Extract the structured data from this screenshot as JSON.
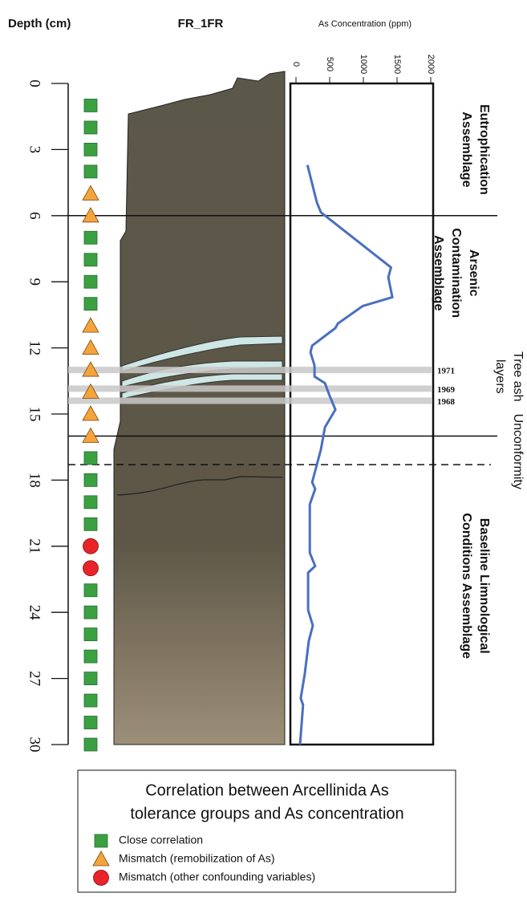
{
  "chart_data": {
    "type": "depth-profile",
    "title": "FR_1FR",
    "ylabel": "Depth (cm)",
    "xlabel": "As Concentration (ppm)",
    "ylim": [
      0,
      30
    ],
    "yticks": [
      0,
      3,
      6,
      9,
      12,
      15,
      18,
      21,
      24,
      27,
      30
    ],
    "xlim": [
      0,
      2000
    ],
    "xticks": [
      0,
      500,
      1000,
      1500,
      2000
    ],
    "series": [
      {
        "color": "#4a6fc0",
        "depths": [
          3.7,
          5.4,
          5.85,
          8.35,
          8.8,
          9.7,
          10.1,
          10.9,
          11.1,
          11.9,
          12.2,
          12.8,
          13.3,
          13.6,
          14.1,
          14.8,
          15.6,
          16.6,
          17.3,
          18.1,
          18.4,
          19.1,
          20.2,
          21.3,
          21.9,
          22.2,
          23.9,
          24.6,
          25.3,
          26.8,
          27.9,
          28.2,
          30
        ],
        "values": [
          170,
          310,
          370,
          1410,
          1370,
          1430,
          990,
          620,
          585,
          240,
          215,
          275,
          275,
          430,
          490,
          585,
          430,
          370,
          310,
          240,
          285,
          205,
          205,
          205,
          285,
          180,
          180,
          250,
          190,
          130,
          70,
          105,
          60
        ]
      }
    ],
    "boundaries": [
      {
        "depth": 6,
        "style": "solid"
      },
      {
        "depth": 16,
        "style": "solid"
      },
      {
        "depth": 17.3,
        "style": "dashed"
      }
    ],
    "ash_layers": [
      {
        "depth": 13,
        "label": "1971"
      },
      {
        "depth": 13.85,
        "label": "1969"
      },
      {
        "depth": 14.4,
        "label": "1968"
      }
    ],
    "zones": [
      {
        "lines": [
          "Eutrophication",
          "Assemblage"
        ],
        "depth": 3,
        "bold": true
      },
      {
        "lines": [
          "Arsenic",
          "Contamination",
          "Assemblage"
        ],
        "depth": 8.6,
        "bold": true
      },
      {
        "lines": [
          "Tree ash",
          "layers"
        ],
        "depth": 13.3,
        "bold": false
      },
      {
        "lines": [
          "Unconformity"
        ],
        "depth": 16.7,
        "bold": false
      },
      {
        "lines": [
          "Baseline Limnological",
          "Conditions Assemblage"
        ],
        "depth": 22.8,
        "bold": true
      }
    ],
    "legend": {
      "title": [
        "Correlation between Arcellinida As",
        "tolerance groups and As concentration"
      ],
      "items": [
        {
          "label": "Close correlation",
          "shape": "square",
          "color": "#3aa041",
          "depths": [
            1,
            2,
            3,
            4,
            7,
            8,
            9,
            10,
            17,
            18,
            19,
            20,
            23,
            24,
            25,
            26,
            27,
            28,
            29,
            30
          ]
        },
        {
          "label": "Mismatch (remobilization of As)",
          "shape": "triangle",
          "color": "#f4a43a",
          "depths": [
            5,
            6,
            11,
            12,
            13,
            14,
            15,
            16
          ]
        },
        {
          "label": "Mismatch (other confounding variables)",
          "shape": "circle",
          "color": "#e8242a",
          "depths": [
            21,
            22
          ]
        }
      ]
    }
  }
}
